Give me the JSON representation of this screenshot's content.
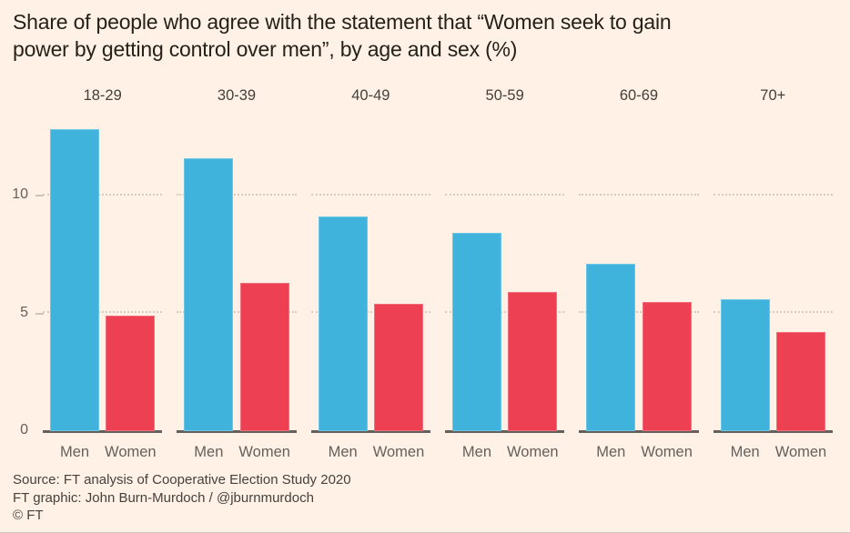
{
  "title": "Share of people who agree with the statement that “Women seek to gain power by getting control over men”, by age and sex (%)",
  "chart_data": {
    "type": "bar",
    "title": "Share of people who agree with the statement that “Women seek to gain power by getting control over men”, by age and sex (%)",
    "facet_by": "age group",
    "categories": [
      "18-29",
      "30-39",
      "40-49",
      "50-59",
      "60-69",
      "70+"
    ],
    "series": [
      {
        "name": "Men",
        "color": "#3FB3DB",
        "values": [
          12.8,
          11.6,
          9.1,
          8.4,
          7.1,
          5.6
        ]
      },
      {
        "name": "Women",
        "color": "#EE4053",
        "values": [
          4.9,
          6.3,
          5.4,
          5.9,
          5.5,
          4.2
        ]
      }
    ],
    "unit": "%",
    "xlabel": "",
    "ylabel": "",
    "ylim": [
      0,
      13.7
    ],
    "yticks": [
      0,
      5,
      10
    ],
    "gridlines": [
      5,
      10
    ],
    "grid_style": "dotted",
    "legend_position": "x-axis labels under each bar"
  },
  "footer": {
    "source": "Source: FT analysis of Cooperative Election Study 2020",
    "credit": "FT graphic: John Burn-Murdoch / @jburnmurdoch",
    "copyright": "© FT"
  },
  "colors": {
    "background": "#FFF1E5",
    "men_bar": "#3FB3DB",
    "women_bar": "#EE4053",
    "axis_line": "#66605C",
    "gridline": "#D8CCC0",
    "title_text": "#262118",
    "tick_text": "#66605C",
    "facet_label_text": "#454039",
    "footer_text": "#46413C"
  }
}
